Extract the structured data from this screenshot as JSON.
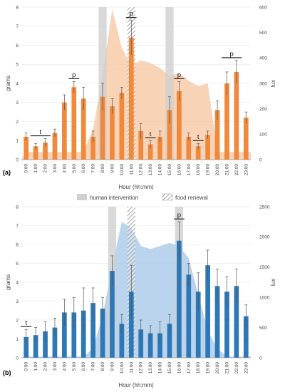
{
  "legend": {
    "human_intervention": "human intervention",
    "food_renewal": "food renewal"
  },
  "colors": {
    "panel_a_bar": "#f0893c",
    "panel_a_area": "#f7c49d",
    "panel_b_bar": "#2e78b7",
    "panel_b_area": "#a9c9e8",
    "human_intervention": "#cfcfcf",
    "food_renewal_hatch": "#9a9a9a"
  },
  "chart_data": [
    {
      "type": "bar",
      "panel_label": "(a)",
      "xlabel": "Hour (hh:mm)",
      "ylabel": "grams",
      "y2label": "lux",
      "ylim": [
        0,
        8
      ],
      "y2lim": [
        0,
        600
      ],
      "yticks": [
        0,
        1,
        2,
        3,
        4,
        5,
        6,
        7,
        8
      ],
      "y2ticks": [
        0,
        100,
        200,
        300,
        400,
        500,
        600
      ],
      "grid": true,
      "categories": [
        "0:00",
        "1:00",
        "2:00",
        "3:00",
        "4:00",
        "5:00",
        "6:00",
        "7:00",
        "8:00",
        "9:00",
        "10:00",
        "11:00",
        "12:00",
        "13:00",
        "14:00",
        "15:00",
        "16:00",
        "17:00",
        "18:00",
        "19:00",
        "20:00",
        "21:00",
        "22:00",
        "23:00"
      ],
      "values": [
        1.2,
        0.7,
        0.9,
        1.4,
        3.0,
        3.8,
        3.2,
        1.2,
        3.3,
        2.8,
        3.5,
        6.4,
        1.5,
        0.8,
        1.2,
        2.6,
        3.6,
        1.2,
        0.7,
        1.3,
        2.6,
        4.0,
        4.6,
        2.2
      ],
      "errors": [
        0.2,
        0.15,
        0.2,
        0.2,
        0.4,
        0.3,
        0.6,
        0.3,
        0.7,
        0.4,
        0.3,
        0.9,
        0.4,
        0.2,
        0.3,
        0.7,
        0.5,
        0.2,
        0.15,
        0.2,
        0.5,
        0.6,
        0.6,
        0.3
      ],
      "lux": [
        30,
        30,
        30,
        30,
        30,
        30,
        30,
        120,
        330,
        590,
        440,
        370,
        390,
        380,
        360,
        330,
        340,
        310,
        290,
        300,
        30,
        30,
        30,
        30
      ],
      "human_intervention_hours": [
        "8:00",
        "15:00"
      ],
      "food_renewal_hours": [
        "11:00"
      ],
      "significance": [
        {
          "label": "t",
          "from": "1:00",
          "to": "2:00"
        },
        {
          "label": "p",
          "from": "5:00",
          "to": "5:00"
        },
        {
          "label": "p",
          "from": "11:00",
          "to": "11:00"
        },
        {
          "label": "t",
          "from": "13:00",
          "to": "13:00"
        },
        {
          "label": "p",
          "from": "16:00",
          "to": "16:00"
        },
        {
          "label": "t",
          "from": "18:00",
          "to": "18:00"
        },
        {
          "label": "p",
          "from": "21:00",
          "to": "22:00"
        }
      ]
    },
    {
      "type": "bar",
      "panel_label": "(b)",
      "xlabel": "Hour (hh:mm)",
      "ylabel": "grams",
      "y2label": "lux",
      "ylim": [
        0,
        8
      ],
      "y2lim": [
        0,
        2500
      ],
      "yticks": [
        0,
        1,
        2,
        3,
        4,
        5,
        6,
        7,
        8
      ],
      "y2ticks": [
        0,
        500,
        1000,
        1500,
        2000,
        2500
      ],
      "grid": true,
      "categories": [
        "0:00",
        "1:00",
        "2:00",
        "3:00",
        "4:00",
        "5:00",
        "6:00",
        "7:00",
        "8:00",
        "9:00",
        "10:00",
        "11:00",
        "12:00",
        "13:00",
        "14:00",
        "15:00",
        "16:00",
        "17:00",
        "18:00",
        "19:00",
        "20:00",
        "21:00",
        "22:00",
        "23:00"
      ],
      "values": [
        1.1,
        1.2,
        1.4,
        1.6,
        2.4,
        2.4,
        2.5,
        2.9,
        2.6,
        4.6,
        1.8,
        3.5,
        1.5,
        1.3,
        1.3,
        1.8,
        6.2,
        4.4,
        3.5,
        4.9,
        3.8,
        3.5,
        3.8,
        2.2
      ],
      "errors": [
        0.4,
        0.4,
        0.5,
        0.5,
        0.7,
        0.8,
        1.2,
        0.8,
        0.6,
        0.8,
        0.5,
        1.4,
        0.5,
        0.4,
        0.6,
        0.5,
        1.0,
        0.6,
        1.0,
        0.8,
        0.9,
        0.8,
        0.9,
        0.6
      ],
      "lux": [
        20,
        20,
        20,
        20,
        20,
        20,
        20,
        150,
        700,
        1500,
        2250,
        2150,
        1850,
        1800,
        1850,
        1900,
        1850,
        1650,
        1050,
        450,
        150,
        20,
        20,
        20
      ],
      "human_intervention_hours": [
        "9:00",
        "16:00"
      ],
      "food_renewal_hours": [
        "11:00"
      ],
      "significance": [
        {
          "label": "t",
          "from": "0:00",
          "to": "0:00"
        },
        {
          "label": "p",
          "from": "16:00",
          "to": "16:00"
        }
      ]
    }
  ]
}
